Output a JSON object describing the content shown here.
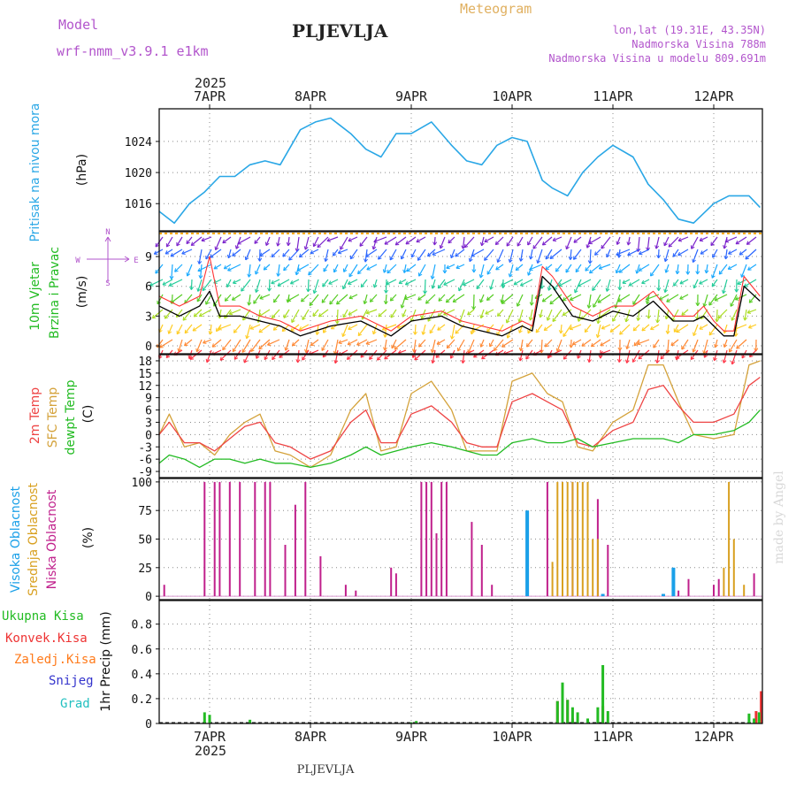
{
  "header": {
    "model_label": "Model",
    "model_name": "wrf-nmm_v3.9.1 e1km",
    "station": "PLJEVLJA",
    "product": "Meteogram",
    "coords": "lon,lat (19.31E, 43.35N)",
    "elevation": "Nadmorska Visina 788m",
    "model_elevation": "Nadmorska Visina u modelu 809.691m"
  },
  "footer": {
    "station": "PLJEVLJA",
    "credit": "made by Angel"
  },
  "time_axis": {
    "year": "2025",
    "days": [
      "7APR",
      "8APR",
      "9APR",
      "10APR",
      "11APR",
      "12APR"
    ]
  },
  "colors": {
    "pressure": "#2aa7e6",
    "wind_speed": "#000000",
    "wind_gust": "#ff3333",
    "t2m": "#ee4444",
    "tsfc": "#d4a23a",
    "dewpt": "#22bb22",
    "cloud_high": "#1aa0e8",
    "cloud_mid": "#d8a020",
    "cloud_low": "#c0208c",
    "precip_total": "#22bb22",
    "precip_conv": "#ee3333",
    "precip_frz": "#ff7a1a",
    "precip_snow": "#3333cc",
    "precip_hail": "#22c0c0"
  },
  "chart_data": [
    {
      "type": "line",
      "id": "pressure",
      "ylabel": "Pritisak na nivou mora",
      "unit": "(hPa)",
      "ylim": [
        1012.5,
        1028.2
      ],
      "yticks": [
        1016,
        1020,
        1024
      ],
      "x_days": [
        0.0,
        0.15,
        0.3,
        0.45,
        0.6,
        0.75,
        0.9,
        1.05,
        1.2,
        1.4,
        1.55,
        1.7,
        1.9,
        2.05,
        2.2,
        2.35,
        2.5,
        2.7,
        2.9,
        3.05,
        3.2,
        3.35,
        3.5,
        3.65,
        3.8,
        3.9,
        4.05,
        4.2,
        4.35,
        4.5,
        4.7,
        4.85,
        5.0,
        5.15,
        5.3,
        5.5,
        5.65,
        5.85,
        5.96
      ],
      "series": [
        {
          "values": [
            1015,
            1013.5,
            1016,
            1017.5,
            1019.5,
            1019.5,
            1021,
            1021.5,
            1021,
            1025.5,
            1026.5,
            1027,
            1025,
            1023,
            1022,
            1025,
            1025,
            1026.5,
            1023.5,
            1021.5,
            1021,
            1023.5,
            1024.5,
            1024,
            1019,
            1018,
            1017,
            1020,
            1022,
            1023.5,
            1022,
            1018.5,
            1016.5,
            1014,
            1013.5,
            1016,
            1017,
            1017,
            1015.5
          ]
        }
      ]
    },
    {
      "type": "line",
      "id": "wind",
      "ylabel": "10m Vjetar",
      "ylabel2": "Brzina i Pravac",
      "unit": "(m/s)",
      "compass": {
        "n": "N",
        "e": "E",
        "s": "S",
        "w": "W"
      },
      "ylim": [
        -0.8,
        11.5
      ],
      "yticks": [
        0,
        3,
        6,
        9
      ],
      "x_days": [
        0.0,
        0.2,
        0.4,
        0.5,
        0.6,
        0.8,
        1.0,
        1.2,
        1.4,
        1.7,
        2.0,
        2.3,
        2.5,
        2.8,
        3.0,
        3.2,
        3.4,
        3.6,
        3.7,
        3.8,
        3.9,
        4.1,
        4.3,
        4.5,
        4.7,
        4.9,
        5.1,
        5.3,
        5.4,
        5.5,
        5.6,
        5.7,
        5.8,
        5.96
      ],
      "series": [
        {
          "values": [
            4,
            3,
            4,
            5.5,
            3,
            3,
            2.5,
            2,
            1,
            2,
            2.5,
            1,
            2.5,
            3,
            2,
            1.5,
            1,
            2,
            1.5,
            7,
            6,
            3,
            2.5,
            3.5,
            3,
            4.5,
            2.5,
            2.5,
            3,
            2,
            1,
            1,
            6,
            4.5
          ]
        },
        {
          "values": [
            5,
            4,
            5,
            9,
            4,
            4,
            3,
            2.5,
            1.5,
            2.5,
            3,
            1.5,
            3,
            3.5,
            2.5,
            2,
            1.5,
            2.5,
            2,
            8,
            7,
            4,
            3,
            4,
            4,
            5.5,
            3,
            3,
            4,
            2.5,
            1.5,
            1.5,
            7,
            5
          ]
        }
      ]
    },
    {
      "type": "line",
      "id": "temperature",
      "ylabel": "2m Temp",
      "ylabel2": "SFC Temp",
      "ylabel3": "dewpt Temp",
      "unit": "(C)",
      "ylim": [
        -10.5,
        19.5
      ],
      "yticks": [
        -9,
        -6,
        -3,
        0,
        3,
        6,
        9,
        12,
        15,
        18
      ],
      "x_days": [
        0.0,
        0.1,
        0.25,
        0.4,
        0.55,
        0.7,
        0.85,
        1.0,
        1.15,
        1.3,
        1.5,
        1.7,
        1.9,
        2.05,
        2.2,
        2.35,
        2.5,
        2.7,
        2.9,
        3.05,
        3.2,
        3.35,
        3.5,
        3.7,
        3.85,
        4.0,
        4.15,
        4.3,
        4.5,
        4.7,
        4.85,
        5.0,
        5.15,
        5.3,
        5.5,
        5.7,
        5.85,
        5.96
      ],
      "series": [
        {
          "values": [
            0,
            3,
            -2,
            -2,
            -4,
            -1,
            2,
            3,
            -2,
            -3,
            -6,
            -4,
            3,
            6,
            -2,
            -2,
            5,
            7,
            3,
            -2,
            -3,
            -3,
            8,
            10,
            8,
            6,
            -2,
            -3,
            1,
            3,
            11,
            12,
            7,
            3,
            3,
            5,
            12,
            14
          ]
        },
        {
          "values": [
            0,
            5,
            -3,
            -2,
            -5,
            0,
            3,
            5,
            -4,
            -5,
            -8,
            -5,
            6,
            10,
            -4,
            -3,
            10,
            13,
            6,
            -4,
            -4,
            -4,
            13,
            15,
            10,
            8,
            -3,
            -4,
            3,
            6,
            17,
            17,
            8,
            0,
            -1,
            0,
            17,
            18
          ]
        },
        {
          "values": [
            -7,
            -5,
            -6,
            -8,
            -6,
            -6,
            -7,
            -6,
            -7,
            -7,
            -8,
            -7,
            -5,
            -3,
            -5,
            -4,
            -3,
            -2,
            -3,
            -4,
            -5,
            -5,
            -2,
            -1,
            -2,
            -2,
            -1,
            -3,
            -2,
            -1,
            -1,
            -1,
            -2,
            0,
            0,
            1,
            3,
            6
          ]
        }
      ]
    },
    {
      "type": "bar",
      "id": "cloud",
      "ylabel": "Visoka Oblacnost",
      "ylabel2": "Srednja Oblacnost",
      "ylabel3": "Niska Oblacnost",
      "unit": "(%)",
      "ylim": [
        -3,
        103
      ],
      "yticks": [
        0,
        25,
        50,
        75,
        100
      ],
      "series": [
        {
          "bars": [
            [
              3.65,
              75
            ],
            [
              4.4,
              2
            ],
            [
              5.0,
              2
            ],
            [
              5.1,
              25
            ]
          ]
        },
        {
          "bars": [
            [
              3.9,
              30
            ],
            [
              3.95,
              100
            ],
            [
              4.0,
              100
            ],
            [
              4.05,
              100
            ],
            [
              4.1,
              100
            ],
            [
              4.15,
              100
            ],
            [
              4.2,
              100
            ],
            [
              4.25,
              100
            ],
            [
              4.3,
              50
            ],
            [
              4.35,
              50
            ],
            [
              5.6,
              25
            ],
            [
              5.65,
              100
            ],
            [
              5.7,
              50
            ],
            [
              5.8,
              10
            ]
          ]
        },
        {
          "bars": [
            [
              0.05,
              10
            ],
            [
              0.45,
              100
            ],
            [
              0.55,
              100
            ],
            [
              0.6,
              100
            ],
            [
              0.7,
              100
            ],
            [
              0.8,
              100
            ],
            [
              0.95,
              100
            ],
            [
              1.05,
              100
            ],
            [
              1.1,
              100
            ],
            [
              1.25,
              45
            ],
            [
              1.35,
              80
            ],
            [
              1.45,
              100
            ],
            [
              1.6,
              35
            ],
            [
              1.85,
              10
            ],
            [
              1.95,
              5
            ],
            [
              2.3,
              25
            ],
            [
              2.35,
              20
            ],
            [
              2.6,
              100
            ],
            [
              2.65,
              100
            ],
            [
              2.7,
              100
            ],
            [
              2.75,
              55
            ],
            [
              2.8,
              100
            ],
            [
              2.85,
              100
            ],
            [
              3.1,
              65
            ],
            [
              3.2,
              45
            ],
            [
              3.3,
              10
            ],
            [
              3.85,
              100
            ],
            [
              4.0,
              100
            ],
            [
              4.1,
              100
            ],
            [
              4.35,
              85
            ],
            [
              4.45,
              45
            ],
            [
              5.15,
              5
            ],
            [
              5.25,
              15
            ],
            [
              5.5,
              10
            ],
            [
              5.55,
              15
            ],
            [
              5.9,
              20
            ]
          ]
        }
      ]
    },
    {
      "type": "bar",
      "id": "precipitation",
      "ylabel": "1hr Precip (mm)",
      "legend": [
        "Ukupna Kisa",
        "Konvek.Kisa",
        "Zaledj.Kisa",
        "Snijeg",
        "Grad"
      ],
      "ylim": [
        0,
        0.99
      ],
      "yticks": [
        0,
        0.2,
        0.4,
        0.6,
        0.8
      ],
      "series": [
        {
          "bars": [
            [
              0.45,
              0.09
            ],
            [
              0.5,
              0.07
            ],
            [
              0.9,
              0.03
            ],
            [
              2.5,
              0.01
            ],
            [
              2.55,
              0.02
            ],
            [
              3.95,
              0.18
            ],
            [
              4.0,
              0.33
            ],
            [
              4.05,
              0.19
            ],
            [
              4.1,
              0.13
            ],
            [
              4.15,
              0.09
            ],
            [
              4.25,
              0.04
            ],
            [
              4.35,
              0.13
            ],
            [
              4.4,
              0.47
            ],
            [
              4.45,
              0.1
            ],
            [
              5.85,
              0.08
            ],
            [
              5.9,
              0.04
            ],
            [
              5.95,
              0.09
            ]
          ]
        },
        {
          "bars": [
            [
              3.95,
              0.18
            ],
            [
              4.05,
              0.19
            ],
            [
              4.1,
              0.04
            ],
            [
              4.4,
              0.14
            ],
            [
              5.92,
              0.1
            ],
            [
              5.97,
              0.26
            ]
          ]
        },
        {
          "bars": []
        },
        {
          "bars": []
        },
        {
          "bars": []
        }
      ]
    }
  ]
}
